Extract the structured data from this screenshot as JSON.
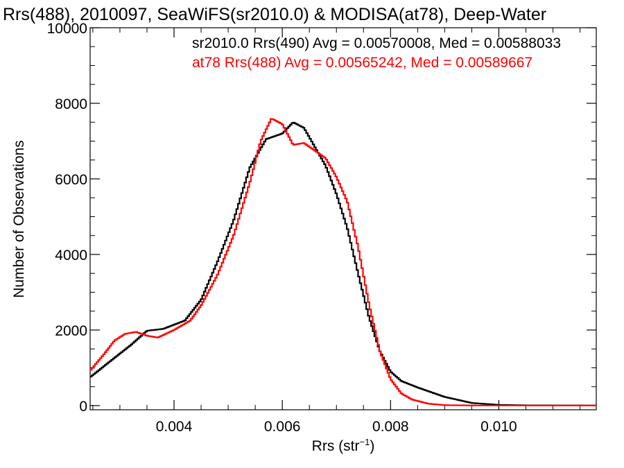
{
  "chart_data": {
    "type": "line",
    "title": "Rrs(488), 2010097, SeaWiFS(sr2010.0) & MODISA(at78), Deep-Water",
    "xlabel": "Rrs (str",
    "xlabel_sup": "−1",
    "xlabel_close": ")",
    "ylabel": "Number of Observations",
    "xlim": [
      0.00245,
      0.0118
    ],
    "ylim": [
      0,
      10000
    ],
    "xticks": [
      {
        "value": 0.004,
        "label": "0.004"
      },
      {
        "value": 0.006,
        "label": "0.006"
      },
      {
        "value": 0.008,
        "label": "0.008"
      },
      {
        "value": 0.01,
        "label": "0.010"
      }
    ],
    "yticks": [
      {
        "value": 0,
        "label": "0"
      },
      {
        "value": 2000,
        "label": "2000"
      },
      {
        "value": 4000,
        "label": "4000"
      },
      {
        "value": 6000,
        "label": "6000"
      },
      {
        "value": 8000,
        "label": "8000"
      },
      {
        "value": 10000,
        "label": "10000"
      }
    ],
    "legend": [
      {
        "text": "sr2010.0 Rrs(490) Avg = 0.00570008, Med = 0.00588033",
        "color": "#000000"
      },
      {
        "text": "at78 Rrs(488) Avg = 0.00565242, Med = 0.00589667",
        "color": "#ff0000"
      }
    ],
    "legend_placement": "top-right",
    "grid": false,
    "series": [
      {
        "color": "#000000",
        "points": [
          [
            0.00245,
            750
          ],
          [
            0.0028,
            1150
          ],
          [
            0.0032,
            1600
          ],
          [
            0.0035,
            1980
          ],
          [
            0.0038,
            2030
          ],
          [
            0.0042,
            2250
          ],
          [
            0.0045,
            2800
          ],
          [
            0.0048,
            3800
          ],
          [
            0.0051,
            4900
          ],
          [
            0.0054,
            6300
          ],
          [
            0.0057,
            7050
          ],
          [
            0.006,
            7200
          ],
          [
            0.0062,
            7500
          ],
          [
            0.0064,
            7350
          ],
          [
            0.0066,
            6850
          ],
          [
            0.0068,
            6350
          ],
          [
            0.007,
            5600
          ],
          [
            0.0072,
            4700
          ],
          [
            0.0074,
            3500
          ],
          [
            0.0076,
            2350
          ],
          [
            0.0078,
            1450
          ],
          [
            0.008,
            900
          ],
          [
            0.0082,
            650
          ],
          [
            0.0085,
            480
          ],
          [
            0.009,
            230
          ],
          [
            0.0095,
            70
          ],
          [
            0.01,
            20
          ],
          [
            0.0105,
            8
          ],
          [
            0.0118,
            3
          ]
        ]
      },
      {
        "color": "#ff0000",
        "points": [
          [
            0.00245,
            920
          ],
          [
            0.0027,
            1350
          ],
          [
            0.0029,
            1720
          ],
          [
            0.0031,
            1900
          ],
          [
            0.0033,
            1950
          ],
          [
            0.0035,
            1850
          ],
          [
            0.0037,
            1800
          ],
          [
            0.004,
            2000
          ],
          [
            0.0043,
            2250
          ],
          [
            0.0045,
            2650
          ],
          [
            0.0048,
            3450
          ],
          [
            0.0051,
            4500
          ],
          [
            0.0054,
            5900
          ],
          [
            0.0056,
            7000
          ],
          [
            0.0058,
            7600
          ],
          [
            0.006,
            7450
          ],
          [
            0.0062,
            6900
          ],
          [
            0.0064,
            6950
          ],
          [
            0.0066,
            6750
          ],
          [
            0.0068,
            6550
          ],
          [
            0.007,
            6050
          ],
          [
            0.0072,
            5400
          ],
          [
            0.0074,
            4200
          ],
          [
            0.0076,
            2700
          ],
          [
            0.0078,
            1450
          ],
          [
            0.008,
            700
          ],
          [
            0.0082,
            320
          ],
          [
            0.0084,
            160
          ],
          [
            0.0087,
            50
          ],
          [
            0.009,
            12
          ],
          [
            0.0095,
            4
          ],
          [
            0.0118,
            2
          ]
        ]
      }
    ]
  }
}
